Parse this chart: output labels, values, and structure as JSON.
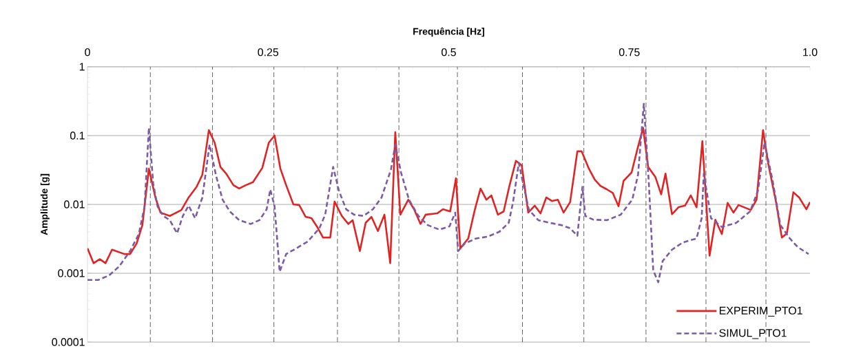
{
  "chart_data": {
    "type": "line",
    "xlabel": "Frequência [Hz]",
    "ylabel": "Amplitude [g]",
    "xlim": [
      0,
      1
    ],
    "xticks": [
      0,
      0.25,
      0.5,
      0.75,
      {
        "value": 1,
        "label": "1.0"
      }
    ],
    "ylim": [
      0.0001,
      1
    ],
    "yticks": [
      0.0001,
      0.001,
      0.01,
      0.1,
      1
    ],
    "log": "y",
    "grid": "y",
    "legend": "bottom right",
    "ref_lines": [
      {
        "axis": "x",
        "value": 0.087,
        "color": "#555555",
        "line_style": "dashed"
      },
      {
        "axis": "x",
        "value": 0.173,
        "color": "#555555",
        "line_style": "dashed"
      },
      {
        "axis": "x",
        "value": 0.258,
        "color": "#555555",
        "line_style": "dashed"
      },
      {
        "axis": "x",
        "value": 0.346,
        "color": "#555555",
        "line_style": "dashed"
      },
      {
        "axis": "x",
        "value": 0.431,
        "color": "#555555",
        "line_style": "dashed"
      },
      {
        "axis": "x",
        "value": 0.512,
        "color": "#555555",
        "line_style": "dashed"
      },
      {
        "axis": "x",
        "value": 0.602,
        "color": "#555555",
        "line_style": "dashed"
      },
      {
        "axis": "x",
        "value": 0.687,
        "color": "#555555",
        "line_style": "dashed"
      },
      {
        "axis": "x",
        "value": 0.773,
        "color": "#555555",
        "line_style": "dashed"
      },
      {
        "axis": "x",
        "value": 0.856,
        "color": "#555555",
        "line_style": "dashed"
      },
      {
        "axis": "x",
        "value": 0.939,
        "color": "#555555",
        "line_style": "dashed"
      }
    ],
    "series": [
      {
        "name": "EXPERIM_PTO1",
        "color": "#e02424",
        "line_style": "solid",
        "x": [
          0.0,
          0.0085,
          0.017,
          0.025,
          0.034,
          0.051,
          0.059,
          0.068,
          0.076,
          0.085,
          0.094,
          0.101,
          0.114,
          0.13,
          0.14,
          0.151,
          0.159,
          0.168,
          0.176,
          0.184,
          0.192,
          0.202,
          0.21,
          0.219,
          0.229,
          0.242,
          0.251,
          0.259,
          0.267,
          0.275,
          0.285,
          0.293,
          0.302,
          0.31,
          0.318,
          0.326,
          0.336,
          0.342,
          0.352,
          0.361,
          0.367,
          0.377,
          0.385,
          0.393,
          0.402,
          0.411,
          0.419,
          0.426,
          0.433,
          0.444,
          0.452,
          0.461,
          0.468,
          0.484,
          0.492,
          0.502,
          0.51,
          0.516,
          0.527,
          0.536,
          0.544,
          0.552,
          0.559,
          0.568,
          0.576,
          0.584,
          0.593,
          0.601,
          0.61,
          0.619,
          0.627,
          0.635,
          0.643,
          0.651,
          0.659,
          0.668,
          0.678,
          0.684,
          0.694,
          0.702,
          0.71,
          0.719,
          0.727,
          0.735,
          0.742,
          0.753,
          0.761,
          0.769,
          0.776,
          0.786,
          0.794,
          0.8,
          0.809,
          0.818,
          0.827,
          0.835,
          0.843,
          0.851,
          0.861,
          0.869,
          0.878,
          0.886,
          0.894,
          0.901,
          0.918,
          0.926,
          0.935,
          0.942,
          0.953,
          0.961,
          0.968,
          0.977,
          0.985,
          0.995,
          1.0
        ],
        "values": [
          0.0023,
          0.0014,
          0.0016,
          0.0014,
          0.0022,
          0.0019,
          0.0019,
          0.0027,
          0.005,
          0.033,
          0.0126,
          0.0076,
          0.0068,
          0.0083,
          0.0126,
          0.018,
          0.027,
          0.12,
          0.079,
          0.035,
          0.028,
          0.019,
          0.017,
          0.019,
          0.021,
          0.034,
          0.079,
          0.1,
          0.033,
          0.019,
          0.01,
          0.0098,
          0.0066,
          0.0063,
          0.0047,
          0.0033,
          0.0033,
          0.011,
          0.0068,
          0.0052,
          0.0059,
          0.0021,
          0.0054,
          0.0066,
          0.0041,
          0.0071,
          0.0014,
          0.112,
          0.0071,
          0.0117,
          0.0085,
          0.0052,
          0.0071,
          0.0074,
          0.0085,
          0.0079,
          0.024,
          0.0023,
          0.0032,
          0.0083,
          0.017,
          0.0117,
          0.0135,
          0.0071,
          0.0079,
          0.0186,
          0.043,
          0.037,
          0.0076,
          0.0096,
          0.0074,
          0.0126,
          0.0112,
          0.0117,
          0.0076,
          0.0108,
          0.059,
          0.059,
          0.033,
          0.023,
          0.0186,
          0.0165,
          0.0147,
          0.0094,
          0.022,
          0.029,
          0.063,
          0.13,
          0.035,
          0.025,
          0.014,
          0.028,
          0.0072,
          0.0091,
          0.0096,
          0.0135,
          0.0091,
          0.083,
          0.0018,
          0.006,
          0.0037,
          0.0105,
          0.0076,
          0.0098,
          0.0083,
          0.0117,
          0.12,
          0.04,
          0.0108,
          0.0033,
          0.0038,
          0.015,
          0.0126,
          0.0085,
          0.0108
        ]
      },
      {
        "name": "SIMUL_PTO1",
        "color": "#7b5aa6",
        "line_style": "dashed",
        "x": [
          0.0,
          0.015,
          0.03,
          0.044,
          0.059,
          0.071,
          0.079,
          0.085,
          0.091,
          0.097,
          0.105,
          0.114,
          0.124,
          0.132,
          0.14,
          0.149,
          0.159,
          0.169,
          0.178,
          0.187,
          0.197,
          0.21,
          0.226,
          0.238,
          0.248,
          0.253,
          0.259,
          0.266,
          0.275,
          0.289,
          0.305,
          0.321,
          0.329,
          0.34,
          0.348,
          0.358,
          0.369,
          0.382,
          0.395,
          0.407,
          0.42,
          0.426,
          0.434,
          0.445,
          0.458,
          0.471,
          0.487,
          0.501,
          0.509,
          0.513,
          0.522,
          0.538,
          0.554,
          0.57,
          0.583,
          0.589,
          0.597,
          0.603,
          0.611,
          0.624,
          0.64,
          0.656,
          0.668,
          0.678,
          0.685,
          0.689,
          0.7,
          0.719,
          0.738,
          0.754,
          0.762,
          0.77,
          0.777,
          0.783,
          0.79,
          0.796,
          0.809,
          0.824,
          0.843,
          0.85,
          0.853,
          0.863,
          0.878,
          0.898,
          0.917,
          0.928,
          0.937,
          0.948,
          0.959,
          0.972,
          0.983,
          0.998
        ],
        "values": [
          0.0008,
          0.0008,
          0.00093,
          0.00126,
          0.0021,
          0.0037,
          0.0093,
          0.13,
          0.02,
          0.0093,
          0.0068,
          0.0059,
          0.0038,
          0.0068,
          0.0096,
          0.0063,
          0.0126,
          0.074,
          0.026,
          0.0117,
          0.0079,
          0.0059,
          0.0052,
          0.0059,
          0.0085,
          0.0165,
          0.0093,
          0.00105,
          0.0019,
          0.0023,
          0.0029,
          0.0045,
          0.0071,
          0.035,
          0.0158,
          0.0085,
          0.0071,
          0.0068,
          0.0085,
          0.0126,
          0.032,
          0.074,
          0.029,
          0.0117,
          0.0068,
          0.005,
          0.0043,
          0.0048,
          0.0076,
          0.0021,
          0.0027,
          0.0032,
          0.0034,
          0.004,
          0.0054,
          0.0108,
          0.04,
          0.02,
          0.0083,
          0.0059,
          0.0054,
          0.005,
          0.0045,
          0.0035,
          0.018,
          0.0068,
          0.006,
          0.0059,
          0.0071,
          0.0117,
          0.027,
          0.29,
          0.02,
          0.0011,
          0.00074,
          0.0015,
          0.0022,
          0.0028,
          0.0032,
          0.0063,
          0.028,
          0.0063,
          0.0047,
          0.0054,
          0.0079,
          0.0158,
          0.079,
          0.023,
          0.005,
          0.0032,
          0.0024,
          0.0019
        ]
      }
    ]
  }
}
